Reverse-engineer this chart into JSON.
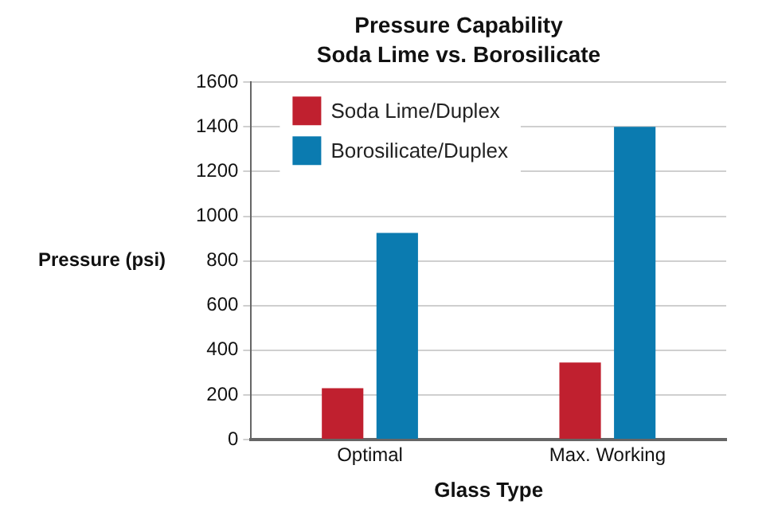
{
  "chart_data": {
    "type": "bar",
    "title": "Pressure Capability",
    "subtitle": "Soda Lime vs. Borosilicate",
    "xlabel": "Glass Type",
    "ylabel": "Pressure (psi)",
    "categories": [
      "Optimal",
      "Max. Working"
    ],
    "series": [
      {
        "name": "Soda Lime/Duplex",
        "color": "#c0202f",
        "values": [
          230,
          345
        ]
      },
      {
        "name": "Borosilicate/Duplex",
        "color": "#0b7bb0",
        "values": [
          925,
          1400
        ]
      }
    ],
    "ylim": [
      0,
      1600
    ],
    "yticks": [
      0,
      200,
      400,
      600,
      800,
      1000,
      1200,
      1400,
      1600
    ],
    "grid": "y",
    "legend": "top left"
  }
}
